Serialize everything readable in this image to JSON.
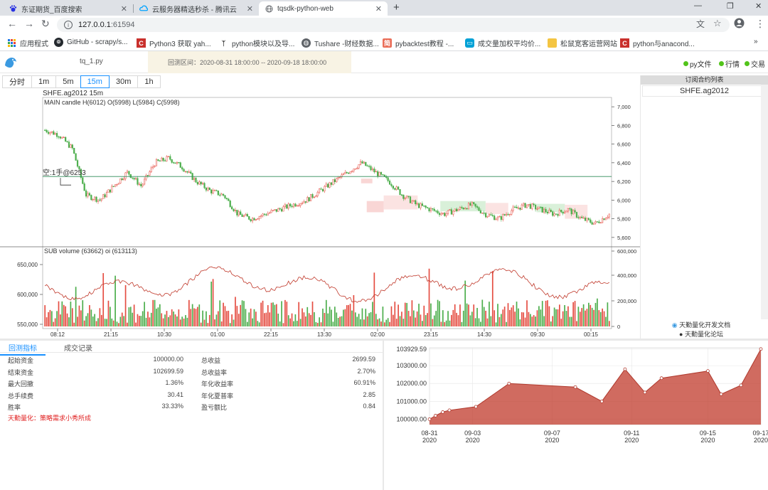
{
  "browser": {
    "tabs": [
      {
        "title": "东证期货_百度搜索",
        "icon": "baidu-paw-icon"
      },
      {
        "title": "云服务器精选秒杀 - 腾讯云",
        "icon": "tencent-cloud-icon"
      },
      {
        "title": "tqsdk-python-web",
        "icon": "globe-icon",
        "active": true
      }
    ],
    "url_host": "127.0.0.1",
    "url_port": ":61594",
    "bookmarks": [
      {
        "label": "应用程式",
        "icon": "apps-grid-icon"
      },
      {
        "label": "GitHub - scrapy/s...",
        "icon": "github-icon"
      },
      {
        "label": "Python3 获取 yah...",
        "icon": "csdn-icon"
      },
      {
        "label": "python模块以及导...",
        "icon": "python-bookmark-icon"
      },
      {
        "label": "Tushare -财经数据...",
        "icon": "globe-icon"
      },
      {
        "label": "pybacktest教程 -...",
        "icon": "jianshu-icon"
      },
      {
        "label": "成交量加权平均价...",
        "icon": "bilibili-icon"
      },
      {
        "label": "松鼠宽客运营网站",
        "icon": "folder-icon"
      },
      {
        "label": "python与anacond...",
        "icon": "csdn-icon"
      }
    ],
    "bookmarks_more": "»"
  },
  "app": {
    "filename": "tq_1.py",
    "backtest_range": "回测区间：2020-08-31 18:00:00 -- 2020-09-18 18:00:00",
    "status": [
      {
        "label": "py文件"
      },
      {
        "label": "行情"
      },
      {
        "label": "交易"
      }
    ],
    "status_color": "#52c41a"
  },
  "periods": {
    "items": [
      "分时",
      "1m",
      "5m",
      "15m",
      "30m",
      "1h"
    ],
    "active": "15m"
  },
  "main_chart": {
    "symbol_title": "SHFE.ag2012 15m",
    "main_legend": "MAIN candle H(6012) O(5998) L(5984) C(5998)",
    "sub_legend": "SUB volume (63662) oi (613113)",
    "position_label": "空:1手@6253",
    "position_price": 6253,
    "up_color": "#e54d42",
    "down_color": "#4cae4c"
  },
  "chart_data": [
    {
      "type": "line",
      "title": "SHFE.ag2012 15m",
      "series_name": "candle",
      "price_axis": {
        "ylim": [
          5500,
          7100
        ],
        "ticks": [
          "7,000",
          "6,800",
          "6,600",
          "6,400",
          "6,200",
          "6,000",
          "5,800",
          "5,600"
        ]
      },
      "volume_axis": {
        "ticks": [
          "600,000",
          "400,000",
          "200,000",
          "0"
        ]
      },
      "oi_axis": {
        "ticks": [
          "650,000",
          "600,000",
          "550,000"
        ]
      },
      "x_ticks": [
        "08:12",
        "21:15",
        "10:30",
        "01:00",
        "22:15",
        "13:30",
        "02:00",
        "23:15",
        "14:30",
        "09:30",
        "00:15"
      ],
      "close_approx": [
        6750,
        6700,
        6550,
        6050,
        6000,
        6150,
        6300,
        6150,
        6400,
        6450,
        6350,
        6200,
        6100,
        6050,
        5850,
        5800,
        5850,
        5900,
        5950,
        6000,
        6100,
        6200,
        6300,
        6400,
        6300,
        6200,
        6050,
        5950,
        5900,
        5850,
        5900,
        5950,
        5850,
        5800,
        5900,
        5950,
        5900,
        5850,
        5900,
        5800,
        5750,
        5850
      ]
    },
    {
      "type": "area",
      "title": "",
      "x": [
        "08-31",
        "09-01",
        "09-02",
        "09-03",
        "09-04",
        "09-05",
        "09-07",
        "09-08",
        "09-09",
        "09-10",
        "09-11",
        "09-14",
        "09-15",
        "09-16",
        "09-17"
      ],
      "y": [
        100000,
        100200,
        100400,
        100500,
        100700,
        102000,
        101800,
        101000,
        102800,
        101500,
        102300,
        102700,
        101400,
        101900,
        103929.59
      ],
      "ylim": [
        99700,
        104000
      ],
      "y_ticks": [
        "103929.59",
        "103000.00",
        "102000.00",
        "101000.00",
        "100000.00"
      ],
      "x_ticks": [
        [
          "08-31",
          "2020"
        ],
        [
          "09-03",
          "2020"
        ],
        [
          "09-07",
          "2020"
        ],
        [
          "09-11",
          "2020"
        ],
        [
          "09-15",
          "2020"
        ],
        [
          "09-17",
          "2020"
        ]
      ],
      "fill_color": "#c0392b"
    }
  ],
  "sidebar": {
    "header": "订阅合约列表",
    "symbols": [
      "SHFE.ag2012"
    ],
    "links": [
      {
        "label": "天勤量化开发文档",
        "icon": "tq-logo-icon"
      },
      {
        "label": "天勤量化论坛",
        "icon": "chat-icon"
      }
    ]
  },
  "backtest": {
    "tabs": [
      "回测指标",
      "成交记录"
    ],
    "metrics": [
      {
        "label": "起始资金",
        "value": "100000.00",
        "label2": "总收益",
        "value2": "2699.59"
      },
      {
        "label": "结束资金",
        "value": "102699.59",
        "label2": "总收益率",
        "value2": "2.70%"
      },
      {
        "label": "最大回撤",
        "value": "1.36%",
        "label2": "年化收益率",
        "value2": "60.91%"
      },
      {
        "label": "总手续费",
        "value": "30.41",
        "label2": "年化夏普率",
        "value2": "2.85"
      },
      {
        "label": "胜率",
        "value": "33.33%",
        "label2": "盈亏额比",
        "value2": "0.84"
      }
    ],
    "slogan": "天勤量化：策略需求小秀所成"
  }
}
